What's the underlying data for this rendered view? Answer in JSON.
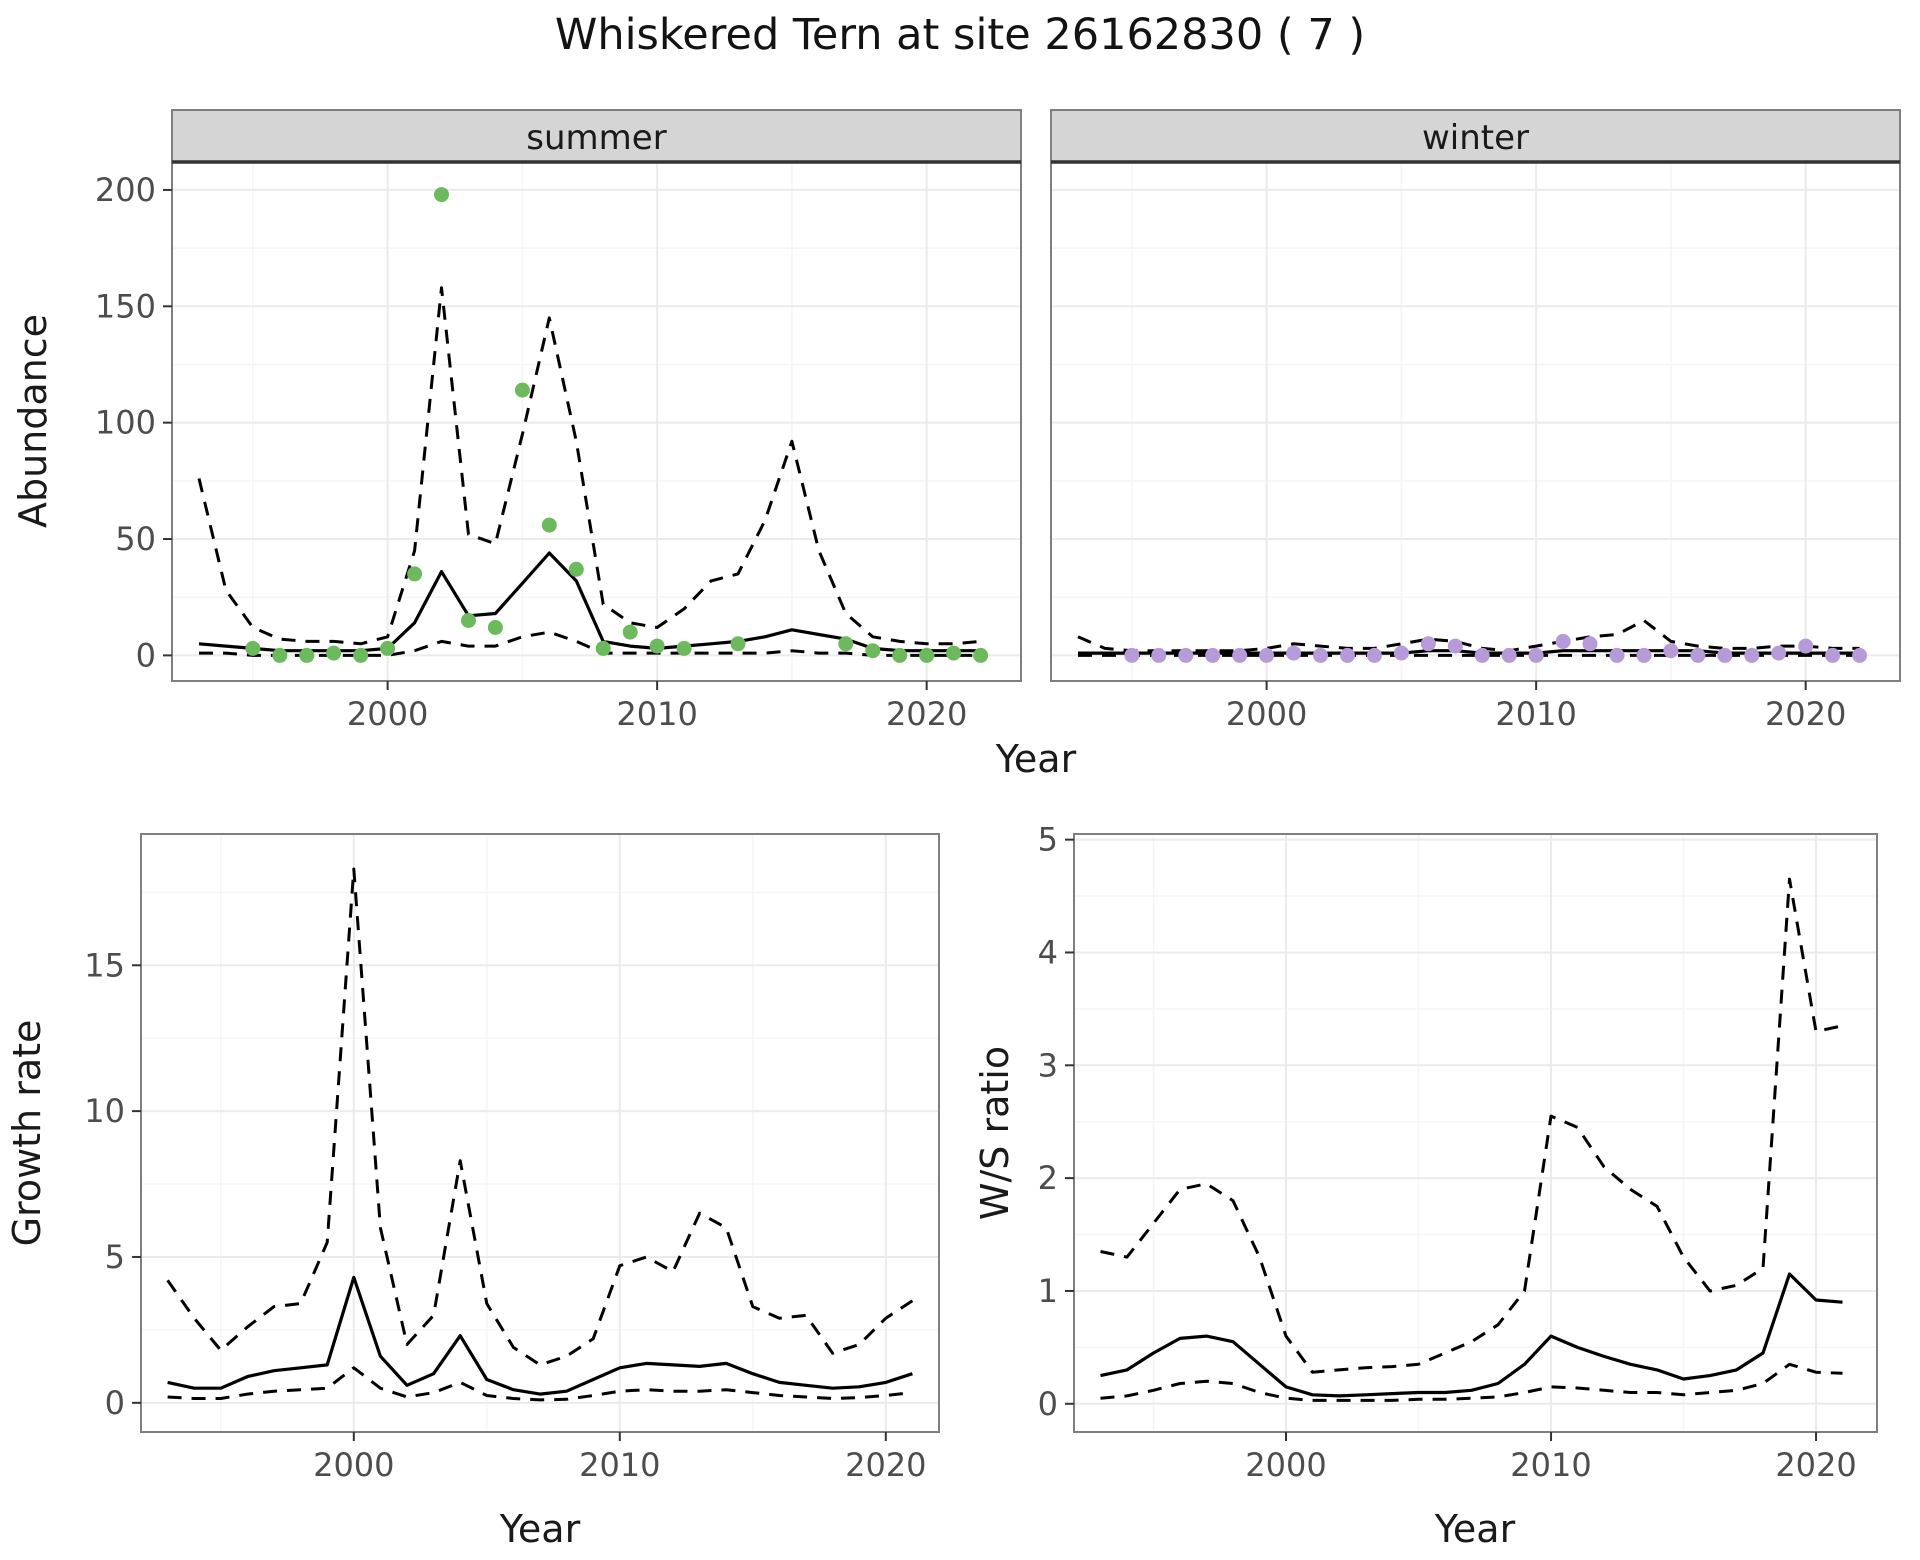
{
  "chart_data": {
    "type": "line",
    "figure_title": "Whiskered Tern at site 26162830 ( 7 )",
    "colors": {
      "summer_points": "#6cba5d",
      "winter_points": "#b79bd8",
      "line": "#000000",
      "strip_bg": "#d5d5d5",
      "strip_border": "#333333",
      "panel_border": "#7f7f7f",
      "grid_major": "#ebebeb",
      "grid_minor": "#f5f5f5",
      "axis_text": "#4d4d4d",
      "title_text": "#131313"
    },
    "abundance": {
      "ylabel": "Abundance",
      "xlabel": "Year",
      "yticks": [
        0,
        50,
        100,
        150,
        200
      ],
      "xticks": [
        2000,
        2010,
        2020
      ],
      "xlim": [
        1992,
        2023.5
      ],
      "ylim": [
        -11,
        212
      ],
      "facets": [
        {
          "label": "summer",
          "years": [
            1993,
            1994,
            1995,
            1996,
            1997,
            1998,
            1999,
            2000,
            2001,
            2002,
            2003,
            2004,
            2005,
            2006,
            2007,
            2008,
            2009,
            2010,
            2011,
            2012,
            2013,
            2014,
            2015,
            2016,
            2017,
            2018,
            2019,
            2020,
            2021,
            2022
          ],
          "mean": [
            5,
            4,
            3,
            2,
            2,
            2,
            2,
            3,
            14,
            36,
            17,
            18,
            31,
            44,
            32,
            6,
            4,
            3,
            4,
            5,
            6,
            8,
            11,
            9,
            7,
            3,
            2,
            2,
            2,
            2
          ],
          "upper": [
            76,
            28,
            12,
            7,
            6,
            6,
            5,
            8,
            45,
            158,
            52,
            48,
            95,
            145,
            92,
            22,
            14,
            12,
            20,
            32,
            35,
            58,
            92,
            45,
            18,
            8,
            6,
            5,
            5,
            6
          ],
          "lower": [
            1,
            1,
            0,
            0,
            0,
            0,
            0,
            0,
            2,
            6,
            4,
            4,
            8,
            10,
            6,
            1,
            1,
            1,
            1,
            1,
            1,
            1,
            2,
            1,
            1,
            0,
            0,
            0,
            0,
            0
          ],
          "obs_years": [
            1995,
            1996,
            1997,
            1998,
            1999,
            2000,
            2001,
            2002,
            2003,
            2004,
            2005,
            2006,
            2007,
            2008,
            2009,
            2010,
            2011,
            2013,
            2017,
            2018,
            2019,
            2020,
            2021,
            2022
          ],
          "obs_values": [
            3,
            0,
            0,
            1,
            0,
            3,
            35,
            198,
            15,
            12,
            114,
            56,
            37,
            3,
            10,
            4,
            3,
            5,
            5,
            2,
            0,
            0,
            1,
            0
          ]
        },
        {
          "label": "winter",
          "years": [
            1993,
            1994,
            1995,
            1996,
            1997,
            1998,
            1999,
            2000,
            2001,
            2002,
            2003,
            2004,
            2005,
            2006,
            2007,
            2008,
            2009,
            2010,
            2011,
            2012,
            2013,
            2014,
            2015,
            2016,
            2017,
            2018,
            2019,
            2020,
            2021,
            2022
          ],
          "mean": [
            1,
            1,
            1,
            1,
            1,
            1,
            1,
            1,
            1,
            1,
            1,
            1,
            1,
            2,
            2,
            1,
            1,
            1,
            2,
            2,
            2,
            2,
            2,
            2,
            1,
            1,
            1,
            1,
            1,
            1
          ],
          "upper": [
            8,
            3,
            2,
            2,
            2,
            2,
            2,
            3,
            5,
            4,
            3,
            3,
            5,
            7,
            6,
            3,
            2,
            4,
            6,
            8,
            9,
            15,
            6,
            4,
            3,
            3,
            4,
            4,
            3,
            3
          ],
          "lower": [
            0,
            0,
            0,
            0,
            0,
            0,
            0,
            0,
            0,
            0,
            0,
            0,
            0,
            0,
            0,
            0,
            0,
            0,
            0,
            0,
            0,
            0,
            0,
            0,
            0,
            0,
            0,
            0,
            0,
            0
          ],
          "obs_years": [
            1995,
            1996,
            1997,
            1998,
            1999,
            2000,
            2001,
            2002,
            2003,
            2004,
            2005,
            2006,
            2007,
            2008,
            2009,
            2010,
            2011,
            2012,
            2013,
            2014,
            2015,
            2016,
            2017,
            2018,
            2019,
            2020,
            2021,
            2022
          ],
          "obs_values": [
            0,
            0,
            0,
            0,
            0,
            0,
            1,
            0,
            0,
            0,
            1,
            5,
            4,
            0,
            0,
            0,
            6,
            5,
            0,
            0,
            2,
            0,
            0,
            0,
            1,
            4,
            0,
            0
          ]
        }
      ]
    },
    "growth_rate": {
      "ylabel": "Growth rate",
      "xlabel": "Year",
      "yticks": [
        0,
        5,
        10,
        15
      ],
      "xticks": [
        2000,
        2010,
        2020
      ],
      "xlim": [
        1992,
        2022
      ],
      "ylim": [
        -1,
        19.5
      ],
      "years": [
        1993,
        1994,
        1995,
        1996,
        1997,
        1998,
        1999,
        2000,
        2001,
        2002,
        2003,
        2004,
        2005,
        2006,
        2007,
        2008,
        2009,
        2010,
        2011,
        2012,
        2013,
        2014,
        2015,
        2016,
        2017,
        2018,
        2019,
        2020,
        2021
      ],
      "mean": [
        0.7,
        0.5,
        0.5,
        0.9,
        1.1,
        1.2,
        1.3,
        4.3,
        1.6,
        0.6,
        1.0,
        2.3,
        0.8,
        0.45,
        0.3,
        0.4,
        0.8,
        1.2,
        1.35,
        1.3,
        1.25,
        1.35,
        1.0,
        0.7,
        0.6,
        0.5,
        0.55,
        0.7,
        1.0
      ],
      "upper": [
        4.2,
        2.9,
        1.8,
        2.6,
        3.3,
        3.4,
        5.5,
        18.3,
        6.0,
        2.0,
        3.0,
        8.3,
        3.4,
        1.9,
        1.3,
        1.6,
        2.2,
        4.7,
        5.0,
        4.5,
        6.5,
        6.0,
        3.3,
        2.9,
        3.0,
        1.7,
        2.0,
        2.9,
        3.5
      ],
      "lower": [
        0.2,
        0.15,
        0.15,
        0.3,
        0.4,
        0.45,
        0.5,
        1.2,
        0.5,
        0.2,
        0.35,
        0.7,
        0.25,
        0.15,
        0.1,
        0.12,
        0.25,
        0.4,
        0.45,
        0.4,
        0.4,
        0.45,
        0.35,
        0.25,
        0.2,
        0.15,
        0.18,
        0.25,
        0.35
      ]
    },
    "ws_ratio": {
      "ylabel": "W/S ratio",
      "xlabel": "Year",
      "yticks": [
        0,
        1,
        2,
        3,
        4,
        5
      ],
      "xticks": [
        2000,
        2010,
        2020
      ],
      "xlim": [
        1992,
        2022.3
      ],
      "ylim": [
        -0.25,
        5.05
      ],
      "years": [
        1993,
        1994,
        1995,
        1996,
        1997,
        1998,
        1999,
        2000,
        2001,
        2002,
        2003,
        2004,
        2005,
        2006,
        2007,
        2008,
        2009,
        2010,
        2011,
        2012,
        2013,
        2014,
        2015,
        2016,
        2017,
        2018,
        2019,
        2020,
        2021
      ],
      "mean": [
        0.25,
        0.3,
        0.45,
        0.58,
        0.6,
        0.55,
        0.35,
        0.15,
        0.08,
        0.07,
        0.08,
        0.09,
        0.1,
        0.1,
        0.12,
        0.18,
        0.35,
        0.6,
        0.5,
        0.42,
        0.35,
        0.3,
        0.22,
        0.25,
        0.3,
        0.45,
        1.15,
        0.92,
        0.9
      ],
      "upper": [
        1.35,
        1.3,
        1.6,
        1.9,
        1.95,
        1.8,
        1.3,
        0.6,
        0.28,
        0.3,
        0.32,
        0.33,
        0.35,
        0.45,
        0.55,
        0.7,
        1.0,
        2.55,
        2.45,
        2.1,
        1.9,
        1.75,
        1.3,
        1.0,
        1.05,
        1.2,
        4.65,
        3.3,
        3.35
      ],
      "lower": [
        0.05,
        0.07,
        0.12,
        0.18,
        0.2,
        0.18,
        0.1,
        0.05,
        0.03,
        0.03,
        0.03,
        0.03,
        0.04,
        0.04,
        0.05,
        0.06,
        0.1,
        0.15,
        0.14,
        0.12,
        0.1,
        0.1,
        0.08,
        0.1,
        0.12,
        0.18,
        0.35,
        0.28,
        0.27
      ]
    }
  }
}
